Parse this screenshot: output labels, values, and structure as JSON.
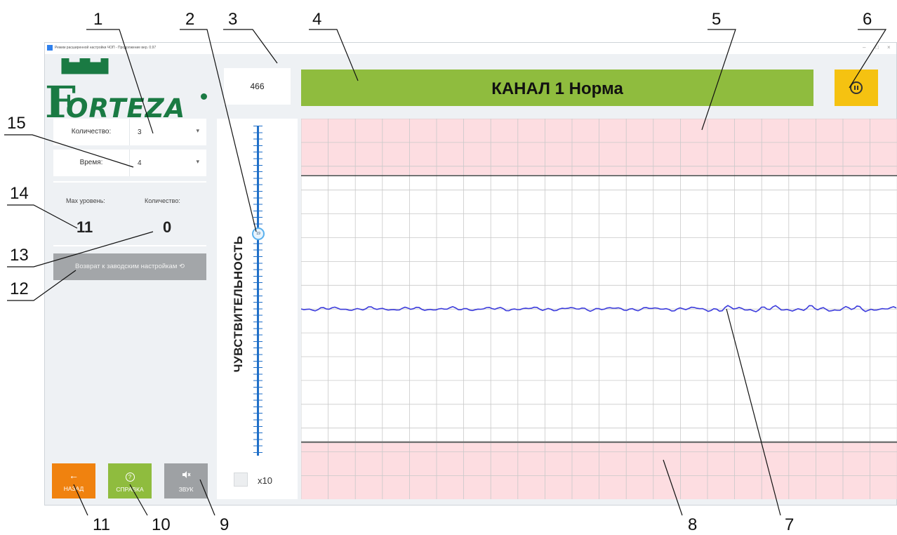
{
  "window": {
    "title": "Режим расширенной настройки ЧОП - Продолжение вер. 0.97",
    "controls": [
      "–",
      "□",
      "×"
    ]
  },
  "logo": {
    "text": "ORTEZA",
    "initial": "F"
  },
  "settings": {
    "count_label": "Количество:",
    "count_value": "3",
    "time_label": "Время:",
    "time_value": "4"
  },
  "stats": {
    "max_level_label": "Max уровень:",
    "max_level_value": "11",
    "count_label": "Количество:",
    "count_value": "0"
  },
  "reset_button": "Возврат к заводским настройкам ⟲",
  "bottom_buttons": {
    "back": {
      "icon": "arrow-left-icon",
      "glyph": "←",
      "label": "НАЗАД",
      "color": "#f0820f"
    },
    "help": {
      "icon": "question-circle-icon",
      "glyph": "?",
      "label": "СПРАВКА",
      "color": "#8fbc3e"
    },
    "sound": {
      "icon": "speaker-mute-icon",
      "glyph": "🔇",
      "label": "ЗВУК",
      "color": "#9ea1a4"
    }
  },
  "header": {
    "counter_value": "466",
    "banner_text": "КАНАЛ 1 Норма",
    "banner_color": "#8fbc3e",
    "pause_color": "#f5c211"
  },
  "sensitivity": {
    "label": "ЧУВСТВИТЕЛЬНОСТЬ",
    "thumb_value": "19",
    "x10_label": "x10",
    "x10_checked": false
  },
  "graph": {
    "alarm_zone_color": "#fddde1",
    "signal_color": "#3b3bdc",
    "upper_threshold_fraction": 0.15,
    "lower_threshold_fraction": 0.85,
    "signal_level_fraction": 0.5
  },
  "callouts": [
    "1",
    "2",
    "3",
    "4",
    "5",
    "6",
    "7",
    "8",
    "9",
    "10",
    "11",
    "12",
    "13",
    "14",
    "15",
    "11"
  ]
}
